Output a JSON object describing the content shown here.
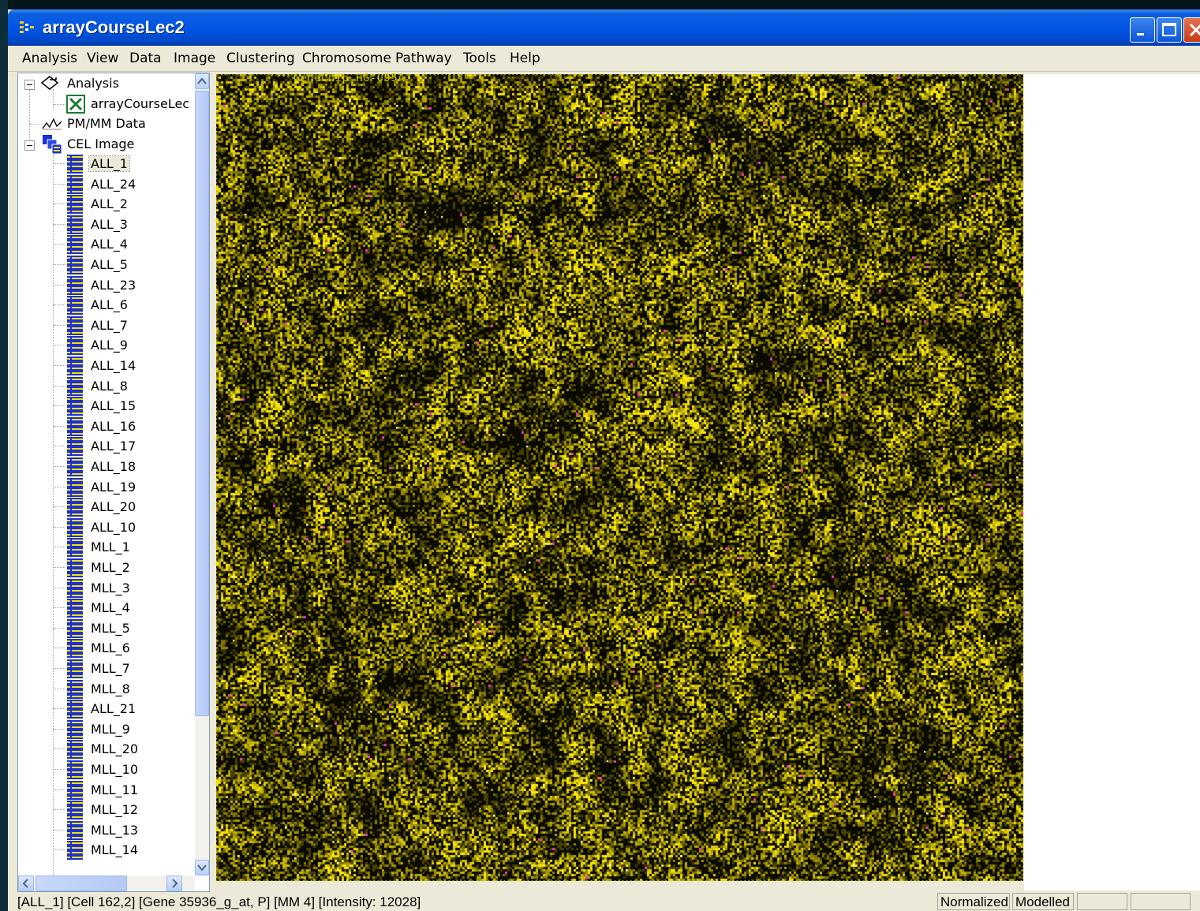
{
  "window": {
    "title": "arrayCourseLec2"
  },
  "menu": [
    "Analysis",
    "View",
    "Data",
    "Image",
    "Clustering",
    "Chromosome",
    "Pathway",
    "Tools",
    "Help"
  ],
  "tree": {
    "analysis": {
      "label": "Analysis",
      "child": "arrayCourseLec"
    },
    "pmmm": {
      "label": "PM/MM Data"
    },
    "cel": {
      "label": "CEL Image",
      "selected": "ALL_1",
      "items": [
        "ALL_1",
        "ALL_24",
        "ALL_2",
        "ALL_3",
        "ALL_4",
        "ALL_5",
        "ALL_23",
        "ALL_6",
        "ALL_7",
        "ALL_9",
        "ALL_14",
        "ALL_8",
        "ALL_15",
        "ALL_16",
        "ALL_17",
        "ALL_18",
        "ALL_19",
        "ALL_20",
        "ALL_10",
        "MLL_1",
        "MLL_2",
        "MLL_3",
        "MLL_4",
        "MLL_5",
        "MLL_6",
        "MLL_7",
        "MLL_8",
        "ALL_21",
        "MLL_9",
        "MLL_20",
        "MLL_10",
        "MLL_11",
        "MLL_12",
        "MLL_13",
        "MLL_14"
      ]
    }
  },
  "image": {
    "chip_label": "GeneChip HG-U95A"
  },
  "status": {
    "text": "[ALL_1] [Cell 162,2] [Gene 35936_g_at, P] [MM 4] [Intensity: 12028]",
    "panels": [
      "Normalized",
      "Modelled",
      "",
      ""
    ]
  },
  "colors": {
    "spot": "#f0e600",
    "background": "#0a0a00",
    "outlier": "#ff33cc",
    "titlebar": "#0054e3"
  }
}
